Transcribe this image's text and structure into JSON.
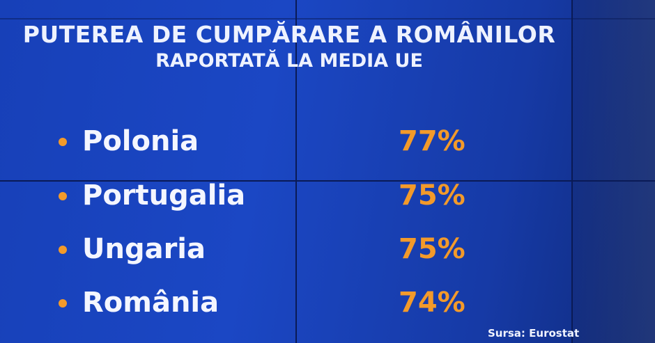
{
  "header": {
    "title": "PUTEREA DE CUMPĂRARE A ROMÂNILOR",
    "subtitle": "RAPORTATĂ LA MEDIA UE"
  },
  "items": [
    {
      "label": "Polonia",
      "value": "77%"
    },
    {
      "label": "Portugalia",
      "value": "75%"
    },
    {
      "label": "Ungaria",
      "value": "75%"
    },
    {
      "label": "România",
      "value": "74%"
    }
  ],
  "source": "Sursa: Eurostat"
}
